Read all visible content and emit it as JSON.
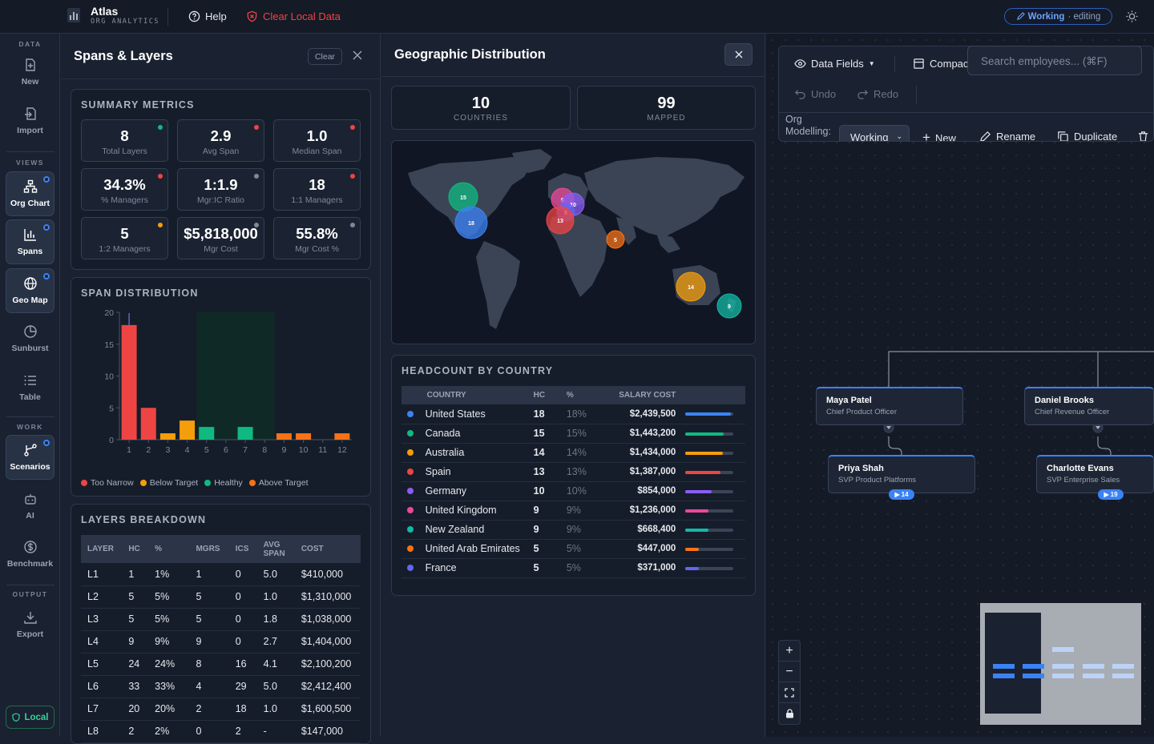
{
  "app": {
    "name": "Atlas",
    "subtitle": "ORG ANALYTICS",
    "help": "Help",
    "clear_local": "Clear Local Data",
    "mode": "Working",
    "mode_state": "· editing"
  },
  "colors": {
    "accent": "#3b82f6",
    "red": "#ef4444",
    "orange": "#f97316",
    "amber": "#f59e0b",
    "green": "#10b981"
  },
  "sidebar": {
    "data_label": "DATA",
    "views_label": "VIEWS",
    "work_label": "WORK",
    "output_label": "OUTPUT",
    "new": "New",
    "import": "Import",
    "org_chart": "Org Chart",
    "spans": "Spans",
    "geo_map": "Geo Map",
    "sunburst": "Sunburst",
    "table": "Table",
    "scenarios": "Scenarios",
    "ai": "AI",
    "benchmark": "Benchmark",
    "export": "Export",
    "local": "Local"
  },
  "spans": {
    "title": "Spans & Layers",
    "clear": "Clear",
    "summary_title": "SUMMARY METRICS",
    "metrics": [
      {
        "value": "8",
        "label": "Total Layers",
        "status": "#10b981"
      },
      {
        "value": "2.9",
        "label": "Avg Span",
        "status": "#ef4444"
      },
      {
        "value": "1.0",
        "label": "Median Span",
        "status": "#ef4444"
      },
      {
        "value": "34.3%",
        "label": "% Managers",
        "status": "#ef4444"
      },
      {
        "value": "1:1.9",
        "label": "Mgr:IC Ratio",
        "status": "#7e8899"
      },
      {
        "value": "18",
        "label": "1:1 Managers",
        "status": "#ef4444"
      },
      {
        "value": "5",
        "label": "1:2 Managers",
        "status": "#f59e0b"
      },
      {
        "value": "$5,818,000",
        "label": "Mgr Cost",
        "status": "#7e8899"
      },
      {
        "value": "55.8%",
        "label": "Mgr Cost %",
        "status": "#7e8899"
      }
    ],
    "dist_title": "SPAN DISTRIBUTION",
    "legend": [
      {
        "label": "Too Narrow",
        "color": "#ef4444"
      },
      {
        "label": "Below Target",
        "color": "#f59e0b"
      },
      {
        "label": "Healthy",
        "color": "#10b981"
      },
      {
        "label": "Above Target",
        "color": "#f97316"
      }
    ],
    "layers_title": "LAYERS BREAKDOWN",
    "layers_cols": [
      "LAYER",
      "HC",
      "%",
      "MGRS",
      "ICS",
      "AVG SPAN",
      "COST"
    ],
    "layers": [
      [
        "L1",
        "1",
        "1%",
        "1",
        "0",
        "5.0",
        "$410,000"
      ],
      [
        "L2",
        "5",
        "5%",
        "5",
        "0",
        "1.0",
        "$1,310,000"
      ],
      [
        "L3",
        "5",
        "5%",
        "5",
        "0",
        "1.8",
        "$1,038,000"
      ],
      [
        "L4",
        "9",
        "9%",
        "9",
        "0",
        "2.7",
        "$1,404,000"
      ],
      [
        "L5",
        "24",
        "24%",
        "8",
        "16",
        "4.1",
        "$2,100,200"
      ],
      [
        "L6",
        "33",
        "33%",
        "4",
        "29",
        "5.0",
        "$2,412,400"
      ],
      [
        "L7",
        "20",
        "20%",
        "2",
        "18",
        "1.0",
        "$1,600,500"
      ],
      [
        "L8",
        "2",
        "2%",
        "0",
        "2",
        "-",
        "$147,000"
      ]
    ]
  },
  "chart_data": {
    "type": "bar",
    "title": "SPAN DISTRIBUTION",
    "categories": [
      "1",
      "2",
      "3",
      "4",
      "5",
      "6",
      "7",
      "8",
      "9",
      "10",
      "11",
      "12"
    ],
    "values": [
      18,
      5,
      1,
      3,
      2,
      0,
      2,
      0,
      1,
      1,
      0,
      1
    ],
    "colors": [
      "#ef4444",
      "#ef4444",
      "#f59e0b",
      "#f59e0b",
      "#10b981",
      "#10b981",
      "#10b981",
      "#10b981",
      "#f97316",
      "#f97316",
      "#f97316",
      "#f97316"
    ],
    "ylim": [
      0,
      20
    ],
    "yticks": [
      "0",
      "5",
      "10",
      "15",
      "20"
    ],
    "target_band": [
      5,
      8
    ]
  },
  "geo": {
    "title": "Geographic Distribution",
    "countries_value": "10",
    "countries_label": "COUNTRIES",
    "mapped_value": "99",
    "mapped_label": "MAPPED",
    "bubbles": [
      {
        "count": 15,
        "color": "#10b981"
      },
      {
        "count": 18,
        "color": "#3b82f6"
      },
      {
        "count": 9,
        "color": "#ec4899"
      },
      {
        "count": 10,
        "color": "#8b5cf6"
      },
      {
        "count": 5,
        "color": "#6366f1"
      },
      {
        "count": 13,
        "color": "#ef4444"
      },
      {
        "count": 5,
        "color": "#f97316"
      },
      {
        "count": 14,
        "color": "#f59e0b"
      },
      {
        "count": 9,
        "color": "#14b8a6"
      }
    ],
    "hc_title": "HEADCOUNT BY COUNTRY",
    "hc_cols": [
      "COUNTRY",
      "HC",
      "%",
      "SALARY COST"
    ],
    "rows": [
      {
        "country": "United States",
        "hc": "18",
        "pct": "18%",
        "cost": "$2,439,500",
        "color": "#3b82f6",
        "share": 0.95
      },
      {
        "country": "Canada",
        "hc": "15",
        "pct": "15%",
        "cost": "$1,443,200",
        "color": "#10b981",
        "share": 0.8
      },
      {
        "country": "Australia",
        "hc": "14",
        "pct": "14%",
        "cost": "$1,434,000",
        "color": "#f59e0b",
        "share": 0.78
      },
      {
        "country": "Spain",
        "hc": "13",
        "pct": "13%",
        "cost": "$1,387,000",
        "color": "#ef4444",
        "share": 0.72
      },
      {
        "country": "Germany",
        "hc": "10",
        "pct": "10%",
        "cost": "$854,000",
        "color": "#8b5cf6",
        "share": 0.55
      },
      {
        "country": "United Kingdom",
        "hc": "9",
        "pct": "9%",
        "cost": "$1,236,000",
        "color": "#ec4899",
        "share": 0.48
      },
      {
        "country": "New Zealand",
        "hc": "9",
        "pct": "9%",
        "cost": "$668,400",
        "color": "#14b8a6",
        "share": 0.48
      },
      {
        "country": "United Arab Emirates",
        "hc": "5",
        "pct": "5%",
        "cost": "$447,000",
        "color": "#f97316",
        "share": 0.28
      },
      {
        "country": "France",
        "hc": "5",
        "pct": "5%",
        "cost": "$371,000",
        "color": "#6366f1",
        "share": 0.28
      }
    ]
  },
  "org": {
    "data_fields": "Data Fields",
    "compact": "Compact",
    "search_placeholder": "Search employees... (⌘F)",
    "undo": "Undo",
    "redo": "Redo",
    "modelling_label": "Org Modelling:",
    "modelling_value": "Working",
    "new": "New",
    "rename": "Rename",
    "duplicate": "Duplicate",
    "nodes": [
      {
        "name": "Maya Patel",
        "role": "Chief Product Officer"
      },
      {
        "name": "Daniel Brooks",
        "role": "Chief Revenue Officer"
      },
      {
        "name": "Priya Shah",
        "role": "SVP Product Platforms",
        "reports": "14"
      },
      {
        "name": "Charlotte Evans",
        "role": "SVP Enterprise Sales",
        "reports": "19"
      }
    ]
  }
}
